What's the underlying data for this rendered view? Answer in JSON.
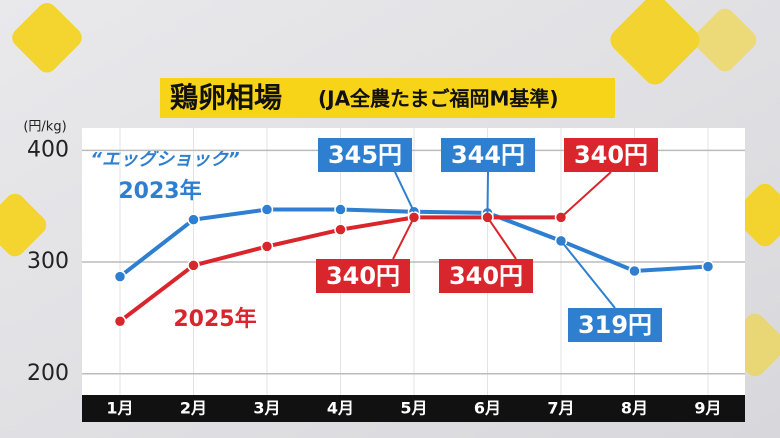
{
  "chart_data": {
    "type": "line",
    "title": "鶏卵相場",
    "subtitle": "(JA全農たまご福岡M基準)",
    "y_label": "(円/kg)",
    "annotations": [
      "“エッグショック”"
    ],
    "categories": [
      "1月",
      "2月",
      "3月",
      "4月",
      "5月",
      "6月",
      "7月",
      "8月",
      "9月"
    ],
    "series": [
      {
        "name": "2023年",
        "color": "#2f7fd0",
        "values": [
          287,
          338,
          347,
          347,
          345,
          344,
          319,
          292,
          296
        ],
        "value_labels": [
          null,
          null,
          null,
          null,
          "345円",
          "344円",
          "319円",
          null,
          null
        ]
      },
      {
        "name": "2025年",
        "color": "#d9262c",
        "values": [
          247,
          297,
          314,
          329,
          340,
          340,
          340,
          null,
          null
        ],
        "value_labels": [
          null,
          null,
          null,
          null,
          "340円",
          "340円",
          "340円",
          null,
          null
        ]
      }
    ],
    "ylim": [
      181,
      420
    ],
    "yticks": [
      200,
      300,
      400
    ],
    "grid": true
  }
}
